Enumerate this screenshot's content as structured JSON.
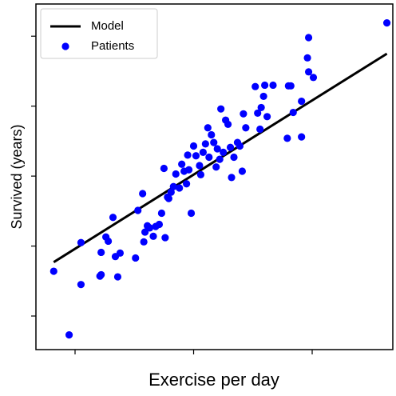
{
  "chart_data": {
    "type": "scatter",
    "xlabel": "Exercise per day",
    "ylabel": "Survived (years)",
    "xlim": [
      0.67,
      3.68
    ],
    "ylim": [
      0.52,
      5.46
    ],
    "xticks": [
      1,
      2,
      3
    ],
    "yticks": [
      1,
      2,
      3,
      4,
      5
    ],
    "legend": "upper left",
    "series": [
      {
        "name": "Model",
        "type": "line",
        "color": "#000000",
        "x": [
          0.82,
          3.63
        ],
        "values": [
          1.77,
          4.75
        ]
      },
      {
        "name": "Patients",
        "type": "scatter",
        "color": "#0000ff",
        "x": [
          0.82,
          0.95,
          1.05,
          1.05,
          1.21,
          1.22,
          1.22,
          1.26,
          1.28,
          1.32,
          1.34,
          1.36,
          1.38,
          1.51,
          1.53,
          1.57,
          1.58,
          1.59,
          1.61,
          1.63,
          1.66,
          1.68,
          1.71,
          1.73,
          1.75,
          1.76,
          1.78,
          1.79,
          1.81,
          1.83,
          1.85,
          1.88,
          1.9,
          1.92,
          1.94,
          1.95,
          1.96,
          1.98,
          2.0,
          2.02,
          2.05,
          2.06,
          2.08,
          2.1,
          2.12,
          2.13,
          2.15,
          2.17,
          2.19,
          2.2,
          2.22,
          2.23,
          2.25,
          2.27,
          2.29,
          2.31,
          2.32,
          2.34,
          2.37,
          2.39,
          2.41,
          2.42,
          2.44,
          2.52,
          2.54,
          2.56,
          2.57,
          2.59,
          2.6,
          2.62,
          2.67,
          2.79,
          2.8,
          2.82,
          2.84,
          2.91,
          2.91,
          2.96,
          2.97,
          2.97,
          3.01,
          3.63
        ],
        "values": [
          1.64,
          0.73,
          2.05,
          1.45,
          1.57,
          1.59,
          1.91,
          2.13,
          2.07,
          2.41,
          1.85,
          1.56,
          1.9,
          1.83,
          2.51,
          2.75,
          2.06,
          2.2,
          2.29,
          2.26,
          2.14,
          2.28,
          2.31,
          2.47,
          3.11,
          2.12,
          2.7,
          2.68,
          2.77,
          2.85,
          3.03,
          2.83,
          3.17,
          3.07,
          2.89,
          3.3,
          3.09,
          2.47,
          3.43,
          3.29,
          3.15,
          3.02,
          3.34,
          3.46,
          3.69,
          3.27,
          3.59,
          3.48,
          3.13,
          3.39,
          3.24,
          3.96,
          3.34,
          3.8,
          3.74,
          3.41,
          2.98,
          3.27,
          3.48,
          3.43,
          3.07,
          3.89,
          3.69,
          4.28,
          3.9,
          3.67,
          3.98,
          4.14,
          4.3,
          3.85,
          4.3,
          3.54,
          4.29,
          4.29,
          3.91,
          3.56,
          4.07,
          4.69,
          4.98,
          4.49,
          4.41,
          5.19
        ]
      }
    ]
  }
}
